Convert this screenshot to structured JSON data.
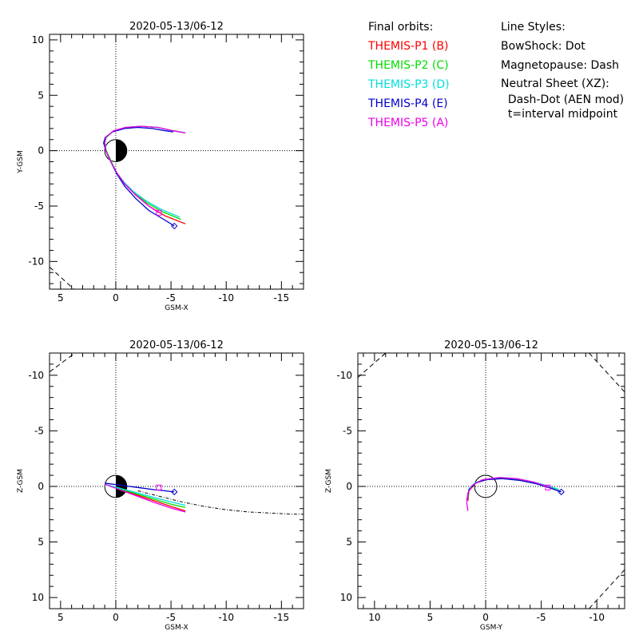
{
  "legend": {
    "orbits_title": "Final orbits:",
    "probes": [
      {
        "label": "THEMIS-P1 (B)",
        "color": "#ff0000"
      },
      {
        "label": "THEMIS-P2 (C)",
        "color": "#00dd00"
      },
      {
        "label": "THEMIS-P3 (D)",
        "color": "#00dddd"
      },
      {
        "label": "THEMIS-P4 (E)",
        "color": "#0000cc"
      },
      {
        "label": "THEMIS-P5 (A)",
        "color": "#ee00ee"
      }
    ],
    "styles_title": "Line Styles:",
    "styles": [
      "BowShock: Dot",
      "Magnetopause: Dash",
      "Neutral Sheet (XZ):",
      "  Dash-Dot (AEN mod)",
      "  t=interval midpoint"
    ]
  },
  "chart_data": [
    {
      "type": "line",
      "title": "2020-05-13/06-12",
      "xlabel": "GSM-X",
      "ylabel": "Y-GSM",
      "xlim": [
        6,
        -17
      ],
      "ylim": [
        10.5,
        -12.5
      ],
      "xticks": [
        5,
        0,
        -5,
        -10,
        -15
      ],
      "yticks": [
        -10,
        -5,
        0,
        5,
        10
      ],
      "series": [
        {
          "name": "THEMIS-P1 (B)",
          "color": "#ff0000",
          "x": [
            -6.3,
            -4.5,
            -3.0,
            -1.8,
            -0.8,
            -0.1,
            0.45,
            0.9,
            1.05,
            0.9,
            0.2,
            -0.9,
            -2.3,
            -3.8,
            -5.2,
            -6.3
          ],
          "y": [
            -6.6,
            -5.9,
            -5.0,
            -4.0,
            -3.0,
            -2.0,
            -1.0,
            0.0,
            0.7,
            1.2,
            1.8,
            2.1,
            2.2,
            2.1,
            1.8,
            1.6
          ]
        },
        {
          "name": "THEMIS-P2 (C)",
          "color": "#00dd00",
          "x": [
            -5.9,
            -4.2,
            -2.8,
            -1.7,
            -0.8,
            -0.1,
            0.4,
            0.85,
            1.0,
            0.85,
            0.2,
            -0.9,
            -2.3,
            -3.8,
            -5.2,
            -6.3
          ],
          "y": [
            -6.2,
            -5.5,
            -4.7,
            -3.8,
            -2.9,
            -2.0,
            -1.0,
            0.0,
            0.7,
            1.2,
            1.8,
            2.1,
            2.2,
            2.1,
            1.8,
            1.6
          ]
        },
        {
          "name": "THEMIS-P3 (D)",
          "color": "#00dddd",
          "x": [
            -5.8,
            -4.1,
            -2.7,
            -1.6,
            -0.7,
            0.0,
            0.45,
            0.9,
            1.05,
            0.9,
            0.2,
            -0.9,
            -2.3,
            -3.8,
            -5.2,
            -6.3
          ],
          "y": [
            -6.0,
            -5.3,
            -4.5,
            -3.7,
            -2.8,
            -1.9,
            -1.0,
            0.0,
            0.7,
            1.2,
            1.8,
            2.1,
            2.2,
            2.1,
            1.8,
            1.6
          ]
        },
        {
          "name": "THEMIS-P4 (E)",
          "color": "#0000cc",
          "x": [
            -5.3,
            -4.5,
            -3.0,
            -1.8,
            -0.8,
            -0.1,
            0.45,
            0.9,
            1.1,
            0.95,
            0.3,
            -0.8,
            -2.0,
            -3.3,
            -4.5,
            -5.2
          ],
          "y": [
            -6.8,
            -6.3,
            -5.4,
            -4.3,
            -3.2,
            -2.1,
            -1.0,
            0.0,
            0.7,
            1.2,
            1.7,
            2.0,
            2.1,
            2.0,
            1.8,
            1.7
          ]
        },
        {
          "name": "THEMIS-P5 (A)",
          "color": "#ee00ee",
          "x": [
            -3.9,
            -3.0,
            -1.8,
            -0.8,
            -0.1,
            0.45,
            0.9,
            1.0,
            0.9,
            0.2,
            -0.9,
            -2.3,
            -3.8,
            -5.2,
            -6.3
          ],
          "y": [
            -5.6,
            -5.0,
            -4.0,
            -3.0,
            -2.0,
            -1.0,
            0.0,
            0.7,
            1.2,
            1.8,
            2.1,
            2.2,
            2.1,
            1.8,
            1.6
          ]
        }
      ],
      "end_markers": [
        {
          "shape": "diamond",
          "x": -5.3,
          "y": -6.8,
          "color": "#0000cc"
        },
        {
          "shape": "square",
          "x": -3.9,
          "y": -5.6,
          "color": "#ee00ee"
        }
      ],
      "magnetopause": {
        "x": [
          6,
          3.8
        ],
        "y": [
          -10.5,
          -12.5
        ]
      },
      "bow_shock": null,
      "neutral_sheet": null
    },
    {
      "type": "line",
      "title": "2020-05-13/06-12",
      "xlabel": "GSM-X",
      "ylabel": "Z-GSM",
      "xlim": [
        6,
        -17
      ],
      "ylim": [
        -12,
        11
      ],
      "xticks": [
        5,
        0,
        -5,
        -10,
        -15
      ],
      "yticks": [
        10,
        5,
        0,
        -5,
        -10
      ],
      "series": [
        {
          "name": "THEMIS-P1 (B)",
          "color": "#ff0000",
          "x": [
            1.0,
            -0.5,
            -2.0,
            -3.5,
            -5.0,
            -6.3
          ],
          "y": [
            -0.2,
            0.3,
            0.8,
            1.3,
            1.8,
            2.2
          ]
        },
        {
          "name": "THEMIS-P2 (C)",
          "color": "#00dd00",
          "x": [
            1.0,
            -0.5,
            -2.0,
            -3.5,
            -5.0,
            -6.3
          ],
          "y": [
            -0.2,
            0.25,
            0.7,
            1.15,
            1.6,
            1.9
          ]
        },
        {
          "name": "THEMIS-P3 (D)",
          "color": "#00dddd",
          "x": [
            1.0,
            -0.5,
            -2.0,
            -3.5,
            -5.0,
            -6.3
          ],
          "y": [
            -0.2,
            0.2,
            0.6,
            1.0,
            1.4,
            1.7
          ]
        },
        {
          "name": "THEMIS-P4 (E)",
          "color": "#0000cc",
          "x": [
            1.0,
            -0.5,
            -2.0,
            -3.5,
            -4.5,
            -5.3
          ],
          "y": [
            -0.3,
            -0.1,
            0.1,
            0.3,
            0.4,
            0.5
          ]
        },
        {
          "name": "THEMIS-P5 (A)",
          "color": "#ee00ee",
          "x": [
            1.0,
            -0.5,
            -2.0,
            -3.5,
            -5.0,
            -6.3
          ],
          "y": [
            -0.2,
            0.35,
            0.9,
            1.45,
            1.95,
            2.3
          ]
        }
      ],
      "end_markers": [
        {
          "shape": "diamond",
          "x": -5.3,
          "y": 0.5,
          "color": "#0000cc"
        },
        {
          "shape": "square",
          "x": -3.9,
          "y": 0.1,
          "color": "#ee00ee"
        }
      ],
      "magnetopause": {
        "x": [
          6,
          3.7
        ],
        "y": [
          -10.3,
          -12
        ]
      },
      "neutral_sheet": {
        "x": [
          -2,
          -4,
          -6,
          -8,
          -10,
          -12,
          -14,
          -16,
          -17
        ],
        "y": [
          0.4,
          0.9,
          1.4,
          1.8,
          2.1,
          2.3,
          2.4,
          2.5,
          2.5
        ]
      }
    },
    {
      "type": "line",
      "title": "2020-05-13/06-12",
      "xlabel": "GSM-Y",
      "ylabel": "Z-GSM",
      "xlim": [
        11.5,
        -12.5
      ],
      "ylim": [
        -12,
        11
      ],
      "xticks": [
        10,
        5,
        0,
        -5,
        -10
      ],
      "yticks": [
        10,
        5,
        0,
        -5,
        -10
      ],
      "series": [
        {
          "name": "THEMIS-P1 (B)",
          "color": "#ff0000",
          "x": [
            1.6,
            1.5,
            0.9,
            0.0,
            -1.5,
            -3.0,
            -4.5,
            -5.8,
            -6.6
          ],
          "y": [
            1.3,
            0.4,
            -0.3,
            -0.6,
            -0.75,
            -0.6,
            -0.3,
            0.05,
            0.3
          ]
        },
        {
          "name": "THEMIS-P2 (C)",
          "color": "#00dd00",
          "x": [
            1.6,
            1.5,
            0.9,
            0.0,
            -1.5,
            -3.0,
            -4.5,
            -5.8,
            -6.6
          ],
          "y": [
            1.0,
            0.3,
            -0.3,
            -0.6,
            -0.75,
            -0.6,
            -0.3,
            0.05,
            0.3
          ]
        },
        {
          "name": "THEMIS-P3 (D)",
          "color": "#00dddd",
          "x": [
            1.6,
            1.5,
            0.9,
            0.0,
            -1.5,
            -3.0,
            -4.5,
            -5.8,
            -6.6
          ],
          "y": [
            0.9,
            0.2,
            -0.35,
            -0.65,
            -0.8,
            -0.65,
            -0.35,
            0.0,
            0.3
          ]
        },
        {
          "name": "THEMIS-P4 (E)",
          "color": "#0000cc",
          "x": [
            1.7,
            1.5,
            0.9,
            0.0,
            -1.5,
            -3.0,
            -4.5,
            -5.8,
            -6.8
          ],
          "y": [
            1.2,
            0.3,
            -0.3,
            -0.6,
            -0.7,
            -0.55,
            -0.25,
            0.15,
            0.5
          ]
        },
        {
          "name": "THEMIS-P5 (A)",
          "color": "#ee00ee",
          "x": [
            1.6,
            1.7,
            1.6,
            1.2,
            0.3,
            -1.2,
            -2.8,
            -4.3,
            -5.8
          ],
          "y": [
            2.2,
            1.5,
            0.6,
            -0.1,
            -0.6,
            -0.8,
            -0.7,
            -0.4,
            0.1
          ]
        }
      ],
      "end_markers": [
        {
          "shape": "diamond",
          "x": -6.8,
          "y": 0.5,
          "color": "#0000cc"
        },
        {
          "shape": "square",
          "x": -5.6,
          "y": 0.1,
          "color": "#ee00ee"
        }
      ],
      "magnetopause_arcs": [
        {
          "x": [
            11.5,
            9.0
          ],
          "y": [
            -9.8,
            -12
          ]
        },
        {
          "x": [
            -9.3,
            -12.5
          ],
          "y": [
            -12,
            -8.5
          ]
        },
        {
          "x": [
            -9.3,
            -12.5
          ],
          "y": [
            11,
            7.5
          ]
        }
      ]
    }
  ]
}
